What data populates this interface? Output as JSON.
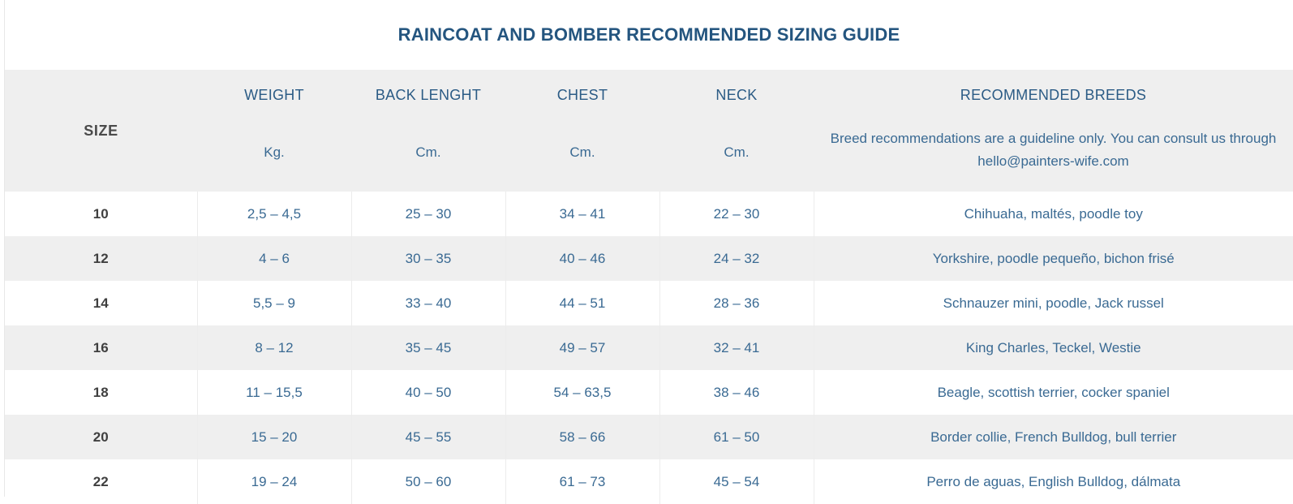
{
  "title": "RAINCOAT AND BOMBER RECOMMENDED SIZING GUIDE",
  "table": {
    "size_header": "SIZE",
    "columns": [
      {
        "label": "WEIGHT",
        "unit": "Kg."
      },
      {
        "label": "BACK LENGHT",
        "unit": "Cm."
      },
      {
        "label": "CHEST",
        "unit": "Cm."
      },
      {
        "label": "NECK",
        "unit": "Cm."
      }
    ],
    "breeds_header": "RECOMMENDED BREEDS",
    "breeds_note_line1": "Breed recommendations are a guideline only. You can consult us through",
    "breeds_note_line2": "hello@painters-wife.com",
    "rows": [
      {
        "size": "10",
        "weight": "2,5 – 4,5",
        "back": "25 – 30",
        "chest": "34 – 41",
        "neck": "22 – 30",
        "breeds": "Chihuaha, maltés, poodle toy"
      },
      {
        "size": "12",
        "weight": "4 – 6",
        "back": "30 – 35",
        "chest": "40 – 46",
        "neck": "24 – 32",
        "breeds": "Yorkshire, poodle pequeño, bichon frisé"
      },
      {
        "size": "14",
        "weight": "5,5 – 9",
        "back": "33 – 40",
        "chest": "44 – 51",
        "neck": "28 – 36",
        "breeds": "Schnauzer mini, poodle, Jack russel"
      },
      {
        "size": "16",
        "weight": "8 – 12",
        "back": "35 – 45",
        "chest": "49 – 57",
        "neck": "32 – 41",
        "breeds": "King Charles, Teckel, Westie"
      },
      {
        "size": "18",
        "weight": "11 – 15,5",
        "back": "40 – 50",
        "chest": "54 – 63,5",
        "neck": "38 – 46",
        "breeds": "Beagle, scottish terrier, cocker spaniel"
      },
      {
        "size": "20",
        "weight": "15 – 20",
        "back": "45 – 55",
        "chest": "58 – 66",
        "neck": "61 – 50",
        "breeds": "Border collie, French Bulldog, bull terrier"
      },
      {
        "size": "22",
        "weight": "19 – 24",
        "back": "50 – 60",
        "chest": "61 – 73",
        "neck": "45 – 54",
        "breeds": "Perro de aguas, English Bulldog, dálmata"
      }
    ]
  },
  "colors": {
    "title": "#24557f",
    "text": "#3a6a93",
    "size_text": "#3f3f3f",
    "stripe": "#efefef"
  }
}
